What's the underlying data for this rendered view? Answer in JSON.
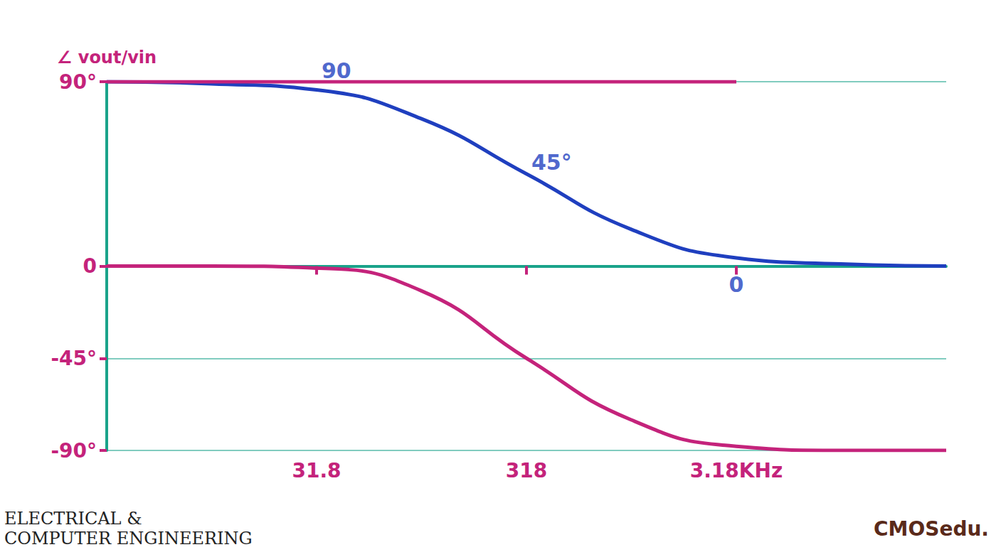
{
  "chart_data": {
    "type": "line",
    "y_label": "∠ vout/vin",
    "log": "x",
    "grid": true,
    "x": [
      3.18,
      10,
      31.8,
      100,
      318,
      1000,
      3180,
      10000,
      31800
    ],
    "series": [
      {
        "color": "#1f3fbf",
        "values": [
          90,
          89,
          86,
          72,
          45,
          18,
          4,
          1,
          0
        ]
      },
      {
        "color": "#c4237b",
        "values": [
          0,
          0,
          -1,
          -12,
          -45,
          -75,
          -88,
          -90,
          -90
        ]
      },
      {
        "color": "#c4237b",
        "values": [
          90,
          90,
          90,
          90,
          90,
          90,
          90,
          null,
          null
        ]
      }
    ],
    "xlim": [
      3.18,
      31800
    ],
    "xticks": [
      31.8,
      318,
      {
        "value": 3180,
        "label": "3.18KHz"
      }
    ],
    "ylim": [
      -90,
      90
    ],
    "yticks": [
      {
        "value": -90,
        "label": "-90°"
      },
      {
        "value": -45,
        "label": "-45°"
      },
      0,
      {
        "value": 90,
        "label": "90°"
      }
    ],
    "annotations": [
      {
        "text": "90",
        "x": 31.8,
        "y": 90,
        "color": "#1f3fbf"
      },
      {
        "text": "45°",
        "x": 318,
        "y": 45,
        "color": "#1f3fbf"
      },
      {
        "text": "0",
        "x": 3180,
        "y": 0,
        "color": "#1f3fbf"
      }
    ],
    "footer": [
      [
        "ELECTRICAL &",
        "COMPUTER ENGINEERING"
      ],
      [
        "CMOSedu."
      ]
    ]
  }
}
